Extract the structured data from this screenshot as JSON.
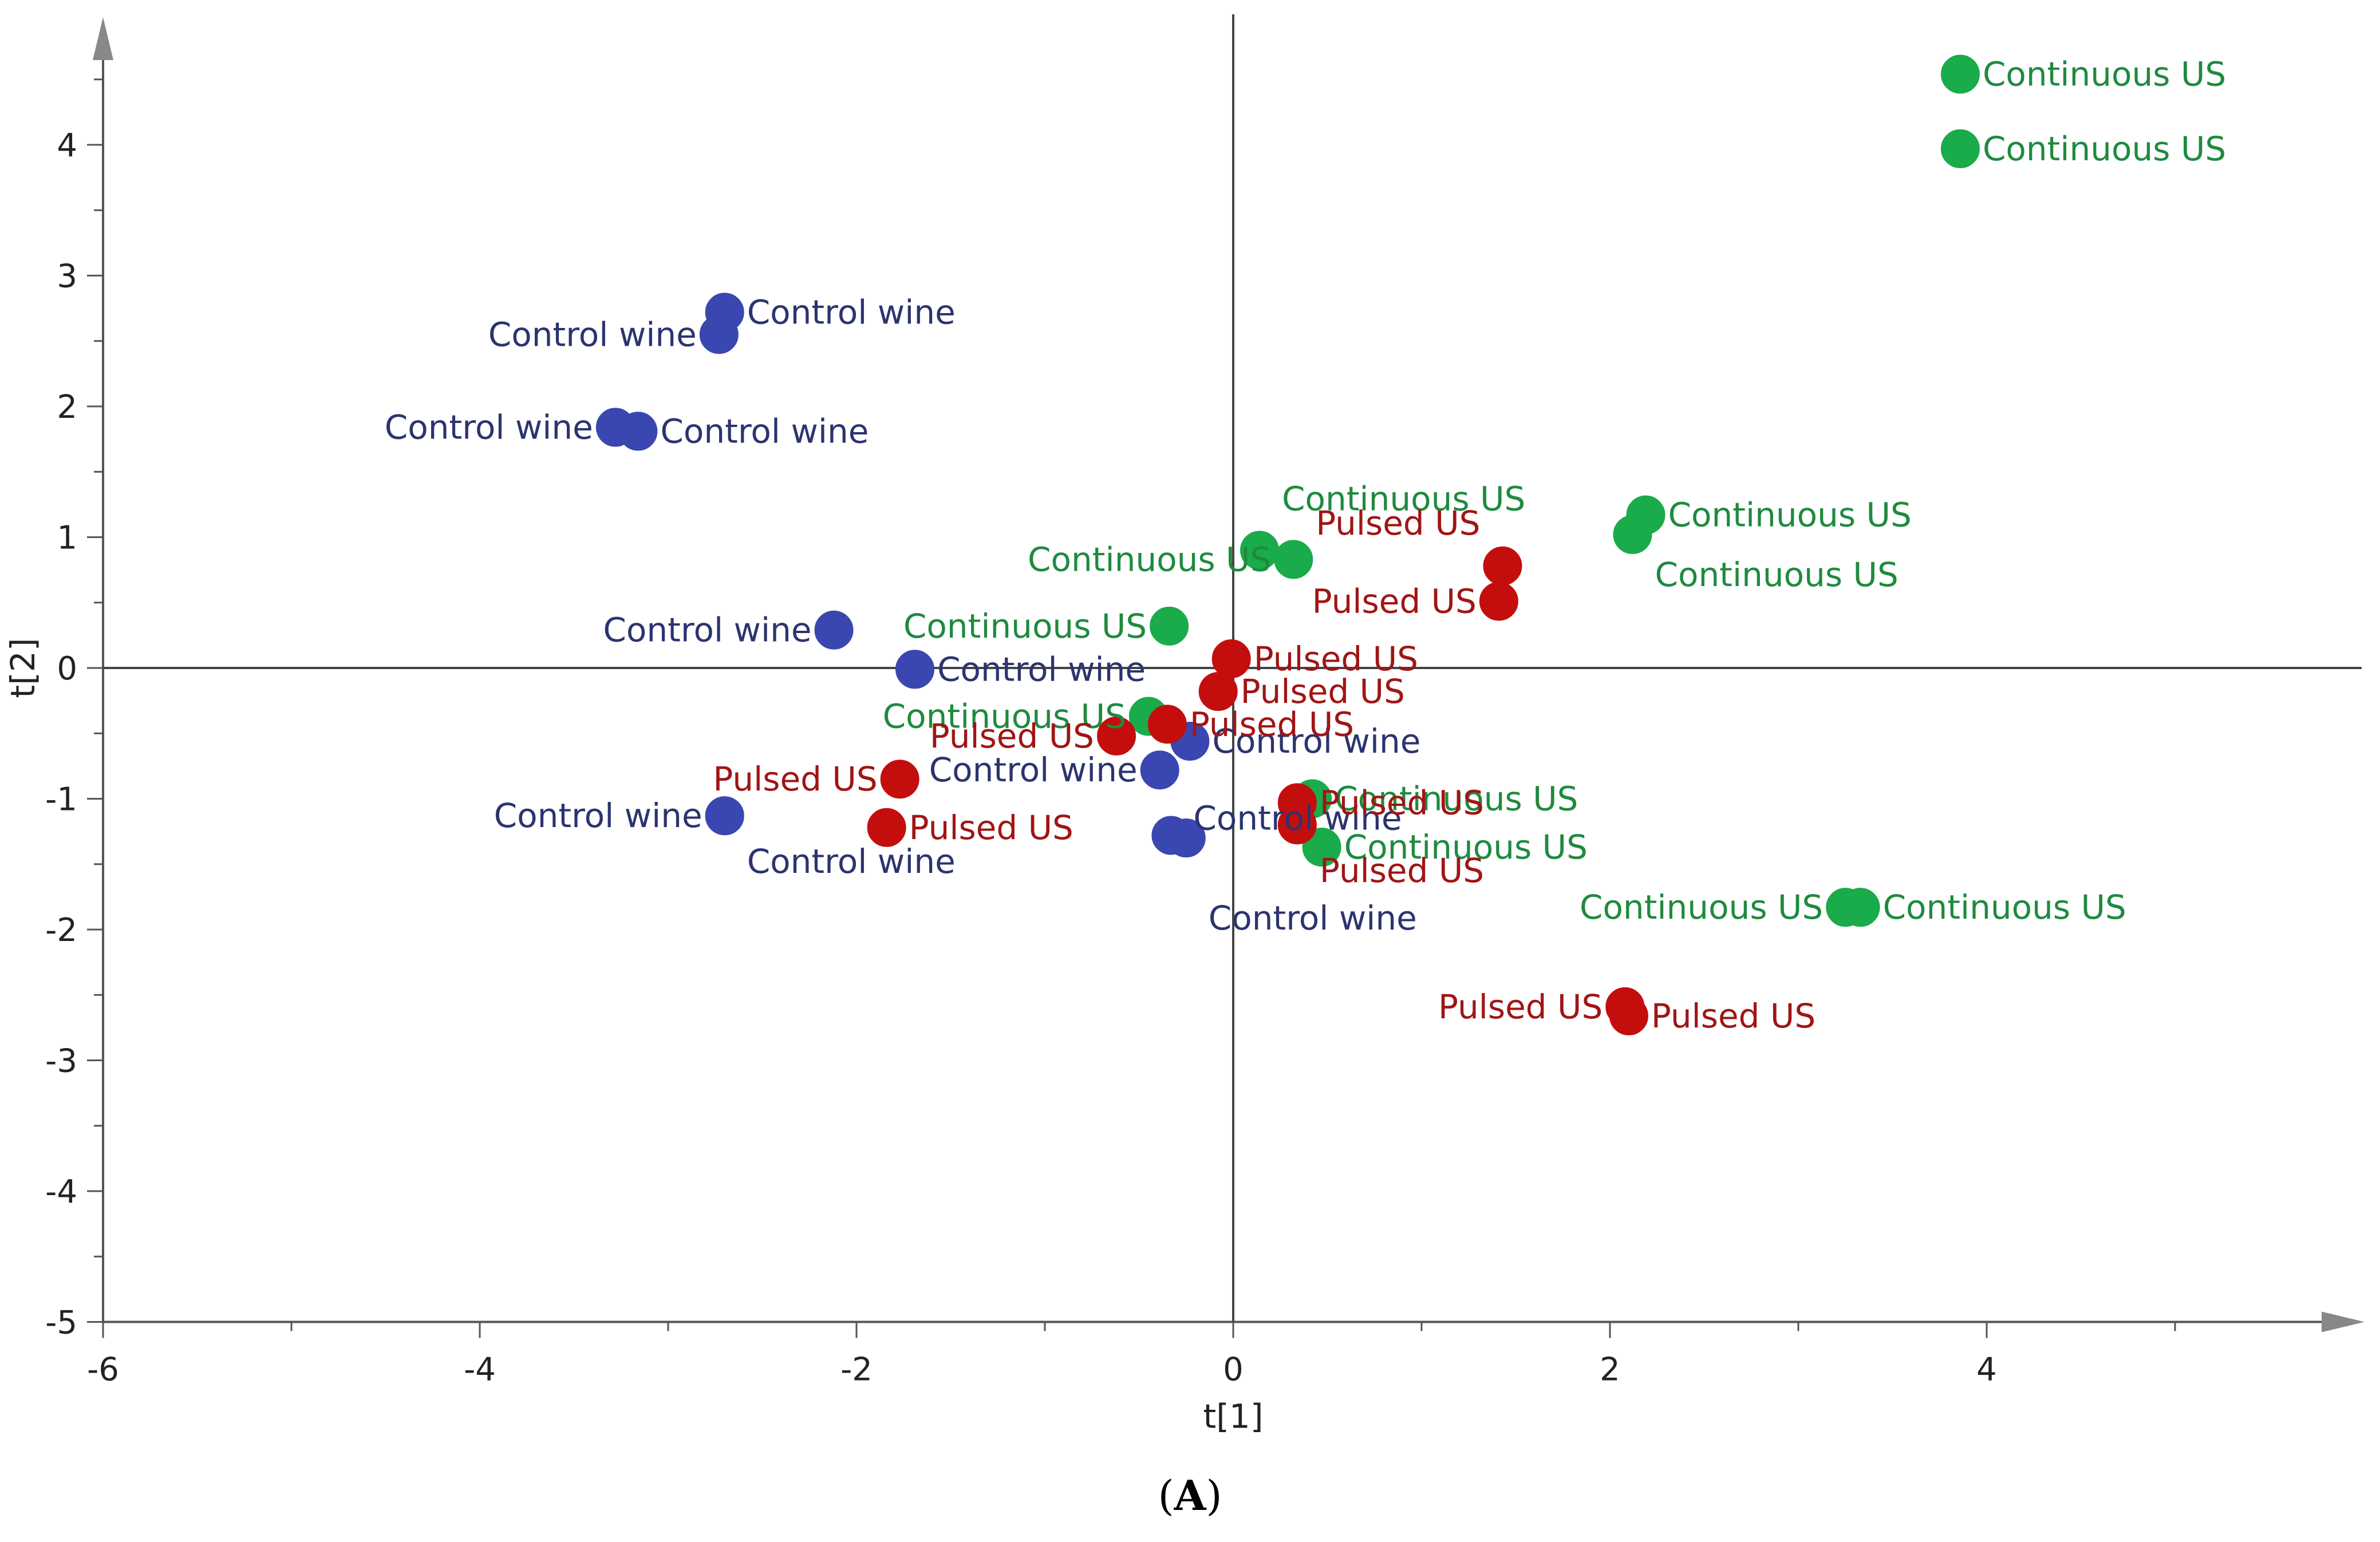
{
  "chart_data": {
    "type": "scatter",
    "title": "",
    "xlabel": "t[1]",
    "ylabel": "t[2]",
    "xlim": [
      -6,
      5.8
    ],
    "ylim": [
      -5,
      5
    ],
    "x_ticks": [
      -6,
      -4,
      -2,
      0,
      2,
      4
    ],
    "y_ticks": [
      -5,
      -4,
      -3,
      -2,
      -1,
      0,
      1,
      2,
      3,
      4
    ],
    "colors": {
      "Control wine": "#3a47b0",
      "Continuous US": "#1aab4a",
      "Pulsed US": "#c40e0e",
      "label_Control wine": "#2b3470",
      "label_Continuous US": "#1f8a3f",
      "label_Pulsed US": "#a01515"
    },
    "series": [
      {
        "name": "Control wine",
        "points": [
          {
            "x": -2.7,
            "y": 2.72,
            "label": "Control wine"
          },
          {
            "x": -2.73,
            "y": 2.55,
            "label": "Control wine"
          },
          {
            "x": -3.28,
            "y": 1.84,
            "label": "Control wine"
          },
          {
            "x": -3.16,
            "y": 1.81,
            "label": "Control wine"
          },
          {
            "x": -2.12,
            "y": 0.29,
            "label": "Control wine"
          },
          {
            "x": -1.69,
            "y": -0.01,
            "label": "Control wine"
          },
          {
            "x": -0.23,
            "y": -0.56,
            "label": "Control wine"
          },
          {
            "x": -0.39,
            "y": -0.78,
            "label": "Control wine"
          },
          {
            "x": -2.7,
            "y": -1.13,
            "label": "Control wine"
          },
          {
            "x": -2.7,
            "y": -1.13,
            "label": "Control wine"
          },
          {
            "x": -0.33,
            "y": -1.28,
            "label": "Control wine"
          },
          {
            "x": -0.25,
            "y": -1.3,
            "label": "Control wine"
          }
        ]
      },
      {
        "name": "Continuous US",
        "points": [
          {
            "x": 3.86,
            "y": 4.54,
            "label": "Continuous US"
          },
          {
            "x": 3.86,
            "y": 3.97,
            "label": "Continuous US"
          },
          {
            "x": 0.14,
            "y": 0.9,
            "label": "Continuous US"
          },
          {
            "x": 0.32,
            "y": 0.83,
            "label": "Continuous US"
          },
          {
            "x": 2.19,
            "y": 1.17,
            "label": "Continuous US"
          },
          {
            "x": 2.12,
            "y": 1.02,
            "label": "Continuous US"
          },
          {
            "x": -0.34,
            "y": 0.32,
            "label": "Continuous US"
          },
          {
            "x": -0.45,
            "y": -0.37,
            "label": "Continuous US"
          },
          {
            "x": 0.42,
            "y": -1.0,
            "label": "Continuous US"
          },
          {
            "x": 0.47,
            "y": -1.37,
            "label": "Continuous US"
          },
          {
            "x": 3.25,
            "y": -1.83,
            "label": "Continuous US"
          },
          {
            "x": 3.33,
            "y": -1.83,
            "label": "Continuous US"
          }
        ]
      },
      {
        "name": "Pulsed US",
        "points": [
          {
            "x": 1.43,
            "y": 0.78,
            "label": "Pulsed US"
          },
          {
            "x": 1.41,
            "y": 0.51,
            "label": "Pulsed US"
          },
          {
            "x": -0.01,
            "y": 0.07,
            "label": "Pulsed US"
          },
          {
            "x": -0.08,
            "y": -0.18,
            "label": "Pulsed US"
          },
          {
            "x": -0.35,
            "y": -0.43,
            "label": "Pulsed US"
          },
          {
            "x": -0.62,
            "y": -0.52,
            "label": "Pulsed US"
          },
          {
            "x": -1.77,
            "y": -0.85,
            "label": "Pulsed US"
          },
          {
            "x": -1.84,
            "y": -1.22,
            "label": "Pulsed US"
          },
          {
            "x": 0.34,
            "y": -1.03,
            "label": "Pulsed US"
          },
          {
            "x": 0.34,
            "y": -1.2,
            "label": "Pulsed US"
          },
          {
            "x": 2.08,
            "y": -2.59,
            "label": "Pulsed US"
          },
          {
            "x": 2.1,
            "y": -2.66,
            "label": "Pulsed US"
          }
        ]
      }
    ]
  },
  "caption": {
    "open": "(",
    "letter": "A",
    "close": ")"
  }
}
